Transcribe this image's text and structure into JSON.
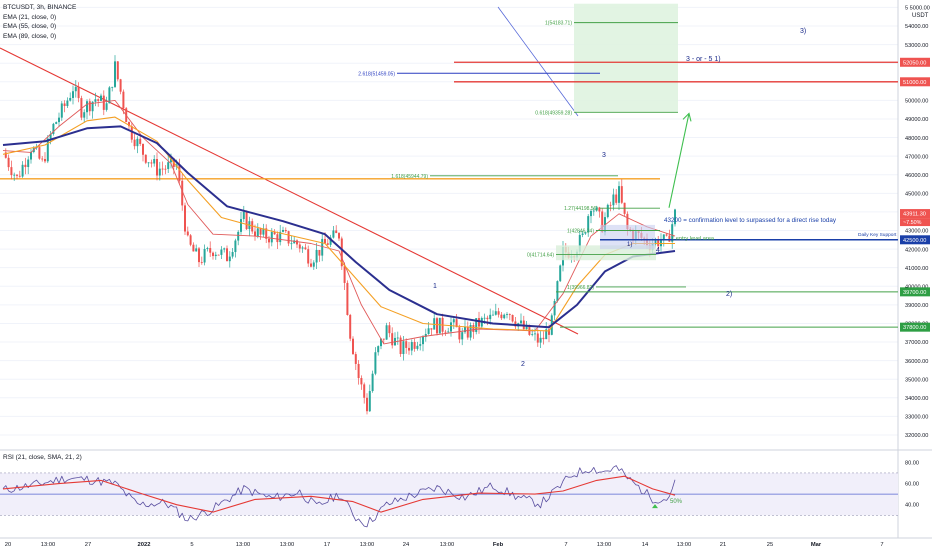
{
  "header": {
    "symbol_line": "BTCUSDT, 3h, BINANCE",
    "ema_lines": [
      "EMA (21, close, 0)",
      "EMA (55, close, 0)",
      "EMA (89, close, 0)"
    ],
    "currency": "USDT"
  },
  "rsi_legend": "RSI (21, close, SMA, 21, 2)",
  "colors": {
    "up": "#26a69a",
    "down": "#ef5350",
    "ema21": "#e05a5a",
    "ema55": "#f4a024",
    "ema89": "#2b2f8f",
    "trendline": "#e53935",
    "fib_green": "#43a047",
    "blue_note": "#1a3fa8",
    "rsi": "#5a4fa0",
    "rsi_ma": "#e53935"
  },
  "chart_data": {
    "type": "candlestick",
    "timeframe": "3h",
    "x_tick_labels": [
      "20",
      "13:00",
      "27",
      "2022",
      "5",
      "13:00",
      "10",
      "13:00",
      "17",
      "13:00",
      "24",
      "13:00",
      "Feb",
      "7",
      "13:00",
      "14",
      "13:00",
      "21",
      "25",
      "Mar",
      "7"
    ],
    "y_range": [
      31300,
      55400
    ],
    "y_tick_labels": [
      "32000.00",
      "33000.00",
      "34000.00",
      "35000.00",
      "36000.00",
      "37000.00",
      "38000.00",
      "39000.00",
      "40000.00",
      "41000.00",
      "42000.00",
      "43000.00",
      "44000.00",
      "45000.00",
      "46000.00",
      "47000.00",
      "48000.00",
      "49000.00",
      "50000.00",
      "51000.00",
      "52000.00",
      "53000.00",
      "54000.00",
      "5 5000.00"
    ],
    "price_path": [
      [
        0,
        47200
      ],
      [
        5,
        45800
      ],
      [
        10,
        47500
      ],
      [
        14,
        46600
      ],
      [
        18,
        48600
      ],
      [
        22,
        49700
      ],
      [
        25,
        50700
      ],
      [
        28,
        49500
      ],
      [
        33,
        50100
      ],
      [
        37,
        49700
      ],
      [
        40,
        51800
      ],
      [
        45,
        48500
      ],
      [
        50,
        47200
      ],
      [
        55,
        46300
      ],
      [
        62,
        46500
      ],
      [
        66,
        42300
      ],
      [
        70,
        41400
      ],
      [
        75,
        42000
      ],
      [
        80,
        41600
      ],
      [
        86,
        43600
      ],
      [
        92,
        42700
      ],
      [
        100,
        42700
      ],
      [
        106,
        42200
      ],
      [
        110,
        41500
      ],
      [
        116,
        42400
      ],
      [
        120,
        42800
      ],
      [
        124,
        37500
      ],
      [
        127,
        35100
      ],
      [
        130,
        33500
      ],
      [
        133,
        36200
      ],
      [
        137,
        37700
      ],
      [
        142,
        36600
      ],
      [
        147,
        37000
      ],
      [
        153,
        38000
      ],
      [
        157,
        37800
      ],
      [
        160,
        38000
      ],
      [
        164,
        37300
      ],
      [
        170,
        38000
      ],
      [
        175,
        38300
      ],
      [
        180,
        38800
      ],
      [
        184,
        38000
      ],
      [
        188,
        37400
      ],
      [
        192,
        37000
      ],
      [
        196,
        38000
      ],
      [
        200,
        41800
      ],
      [
        204,
        42000
      ],
      [
        207,
        42600
      ],
      [
        210,
        44500
      ],
      [
        214,
        43300
      ],
      [
        218,
        44700
      ],
      [
        220,
        45000
      ],
      [
        223,
        43000
      ],
      [
        227,
        42700
      ],
      [
        231,
        42300
      ],
      [
        235,
        42500
      ],
      [
        237,
        42300
      ],
      [
        240,
        43900
      ]
    ],
    "ema_series": [
      {
        "name": "EMA (21, close, 0)",
        "path": [
          [
            0,
            47300
          ],
          [
            10,
            47200
          ],
          [
            20,
            48600
          ],
          [
            30,
            49800
          ],
          [
            40,
            50000
          ],
          [
            50,
            48000
          ],
          [
            60,
            46600
          ],
          [
            66,
            44400
          ],
          [
            75,
            42800
          ],
          [
            90,
            42700
          ],
          [
            110,
            42300
          ],
          [
            120,
            41900
          ],
          [
            128,
            39000
          ],
          [
            136,
            36900
          ],
          [
            150,
            37300
          ],
          [
            170,
            37700
          ],
          [
            190,
            37600
          ],
          [
            200,
            39600
          ],
          [
            210,
            42700
          ],
          [
            220,
            43900
          ],
          [
            230,
            43200
          ],
          [
            240,
            42700
          ]
        ]
      },
      {
        "name": "EMA (55, close, 0)",
        "path": [
          [
            0,
            47100
          ],
          [
            15,
            47600
          ],
          [
            30,
            48900
          ],
          [
            40,
            49100
          ],
          [
            55,
            47800
          ],
          [
            66,
            45700
          ],
          [
            78,
            43700
          ],
          [
            95,
            43000
          ],
          [
            115,
            42300
          ],
          [
            125,
            40600
          ],
          [
            135,
            38900
          ],
          [
            150,
            38000
          ],
          [
            175,
            37700
          ],
          [
            195,
            37600
          ],
          [
            205,
            40000
          ],
          [
            215,
            41700
          ],
          [
            225,
            42300
          ],
          [
            240,
            42300
          ]
        ]
      },
      {
        "name": "EMA (89, close, 0)",
        "path": [
          [
            0,
            47600
          ],
          [
            15,
            47800
          ],
          [
            30,
            48500
          ],
          [
            42,
            48600
          ],
          [
            55,
            47700
          ],
          [
            66,
            46100
          ],
          [
            80,
            44300
          ],
          [
            100,
            43500
          ],
          [
            115,
            42800
          ],
          [
            126,
            41300
          ],
          [
            138,
            39800
          ],
          [
            155,
            38500
          ],
          [
            175,
            38000
          ],
          [
            195,
            37800
          ],
          [
            205,
            39000
          ],
          [
            215,
            40800
          ],
          [
            225,
            41600
          ],
          [
            240,
            41900
          ]
        ]
      }
    ],
    "rsi": {
      "y_range": [
        18,
        87
      ],
      "y_tick_labels": [
        "40.00",
        "60.00",
        "80.00"
      ],
      "bands": [
        70,
        30
      ],
      "mid": 50,
      "label_50": "50%",
      "path": [
        [
          0,
          54
        ],
        [
          10,
          58
        ],
        [
          22,
          65
        ],
        [
          30,
          64
        ],
        [
          40,
          60
        ],
        [
          48,
          40
        ],
        [
          58,
          42
        ],
        [
          66,
          26
        ],
        [
          75,
          36
        ],
        [
          86,
          55
        ],
        [
          96,
          46
        ],
        [
          106,
          52
        ],
        [
          112,
          38
        ],
        [
          120,
          50
        ],
        [
          126,
          28
        ],
        [
          130,
          22
        ],
        [
          137,
          40
        ],
        [
          145,
          48
        ],
        [
          155,
          56
        ],
        [
          165,
          47
        ],
        [
          175,
          58
        ],
        [
          185,
          46
        ],
        [
          192,
          41
        ],
        [
          196,
          50
        ],
        [
          203,
          68
        ],
        [
          210,
          75
        ],
        [
          214,
          71
        ],
        [
          219,
          75
        ],
        [
          224,
          63
        ],
        [
          232,
          46
        ],
        [
          237,
          45
        ],
        [
          240,
          60
        ]
      ],
      "ma_path": [
        [
          0,
          55
        ],
        [
          20,
          60
        ],
        [
          35,
          63
        ],
        [
          50,
          50
        ],
        [
          62,
          40
        ],
        [
          75,
          33
        ],
        [
          90,
          45
        ],
        [
          110,
          48
        ],
        [
          125,
          43
        ],
        [
          135,
          33
        ],
        [
          150,
          45
        ],
        [
          170,
          51
        ],
        [
          190,
          50
        ],
        [
          200,
          53
        ],
        [
          212,
          63
        ],
        [
          222,
          67
        ],
        [
          232,
          55
        ],
        [
          240,
          49
        ]
      ]
    },
    "annotations": {
      "wave_labels": [
        "1",
        "2",
        "3",
        "4",
        "1)",
        "2)",
        "3)",
        "3 - or - 5 1)"
      ],
      "fib_labels": [
        "1(54183.71)",
        "0.618(49359.28)",
        "2.618(51459.05)",
        "1.618(45944.79)",
        "1.27(44198.56)",
        "1(42846.34)",
        "0.618(?)",
        "0(41714.64)",
        "1(39966.82)"
      ],
      "right_tags": [
        "43911.30",
        "~7.50%",
        "52050.00",
        "51000.00",
        "42500.00",
        "39700.00",
        "37800.00"
      ],
      "notes": [
        "43200 = confirmation level to surpassed for a direct rise today",
        "entry level area",
        "Daily Key Support"
      ]
    }
  }
}
